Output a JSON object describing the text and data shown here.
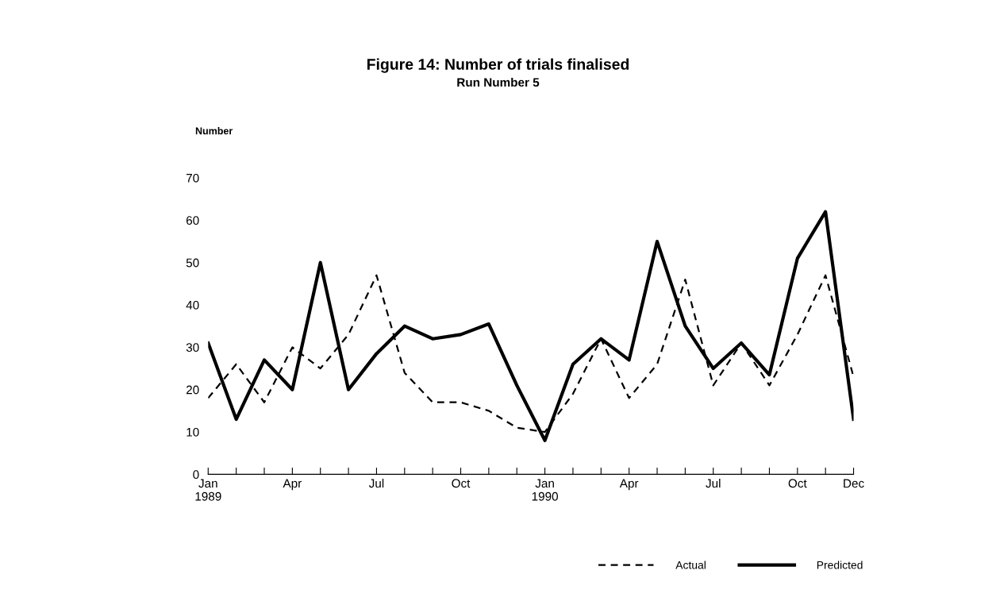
{
  "chart_data": {
    "type": "line",
    "title": "Figure 14: Number of trials finalised",
    "subtitle": "Run Number 5",
    "ylabel": "Number",
    "categories": [
      "Jan\n1989",
      null,
      null,
      "Apr",
      null,
      null,
      "Jul",
      null,
      null,
      "Oct",
      null,
      null,
      "Jan\n1990",
      null,
      null,
      "Apr",
      null,
      null,
      "Jul",
      null,
      null,
      "Oct",
      null,
      "Dec"
    ],
    "series": [
      {
        "name": "Actual",
        "color": "#000000",
        "line_style": "dashed",
        "values": [
          18,
          26,
          17,
          30,
          25,
          33,
          47,
          24,
          17,
          17,
          15,
          11,
          10,
          19,
          32,
          18,
          26,
          46,
          21,
          31,
          21,
          33,
          47,
          23
        ]
      },
      {
        "name": "Predicted",
        "color": "#000000",
        "line_style": "solid",
        "values": [
          31,
          13,
          27,
          20,
          50,
          20,
          28.5,
          35,
          32,
          33,
          35.5,
          21,
          8,
          26,
          32,
          27,
          55,
          35,
          25,
          31,
          23.5,
          51,
          62,
          13
        ]
      }
    ],
    "ylim": [
      0,
      70
    ],
    "yticks": [
      0,
      10,
      20,
      30,
      40,
      50,
      60,
      70
    ],
    "grid": false,
    "legend": "bottom right",
    "marker": "none"
  }
}
